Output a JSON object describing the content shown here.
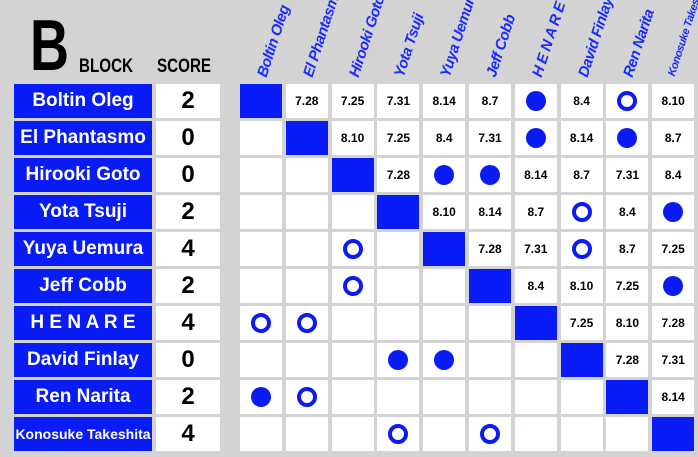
{
  "header": {
    "letter": "B",
    "block": "BLOCK",
    "score": "SCORE"
  },
  "accent": "#0a1cf5",
  "legend_codes": {
    "X": "self",
    "W": "filled-circle",
    "L": "open-circle"
  },
  "wrestlers": [
    {
      "name": "Boltin Oleg",
      "score": "2",
      "results": [
        "X",
        "7.28",
        "7.25",
        "7.31",
        "8.14",
        "8.7",
        "W",
        "8.4",
        "L",
        "8.10"
      ]
    },
    {
      "name": "El Phantasmo",
      "score": "0",
      "results": [
        "",
        "X",
        "8.10",
        "7.25",
        "8.4",
        "7.31",
        "W",
        "8.14",
        "W",
        "8.7"
      ]
    },
    {
      "name": "Hirooki Goto",
      "score": "0",
      "results": [
        "",
        "",
        "X",
        "7.28",
        "W",
        "W",
        "8.14",
        "8.7",
        "7.31",
        "8.4"
      ]
    },
    {
      "name": "Yota Tsuji",
      "score": "2",
      "results": [
        "",
        "",
        "",
        "X",
        "8.10",
        "8.14",
        "8.7",
        "L",
        "8.4",
        "W"
      ]
    },
    {
      "name": "Yuya Uemura",
      "score": "4",
      "results": [
        "",
        "",
        "L",
        "",
        "X",
        "7.28",
        "7.31",
        "L",
        "8.7",
        "7.25"
      ]
    },
    {
      "name": "Jeff Cobb",
      "score": "2",
      "results": [
        "",
        "",
        "L",
        "",
        "",
        "X",
        "8.4",
        "8.10",
        "7.25",
        "W"
      ]
    },
    {
      "name": "H E N A R E",
      "score": "4",
      "results": [
        "L",
        "L",
        "",
        "",
        "",
        "",
        "X",
        "7.25",
        "8.10",
        "7.28"
      ]
    },
    {
      "name": "David Finlay",
      "score": "0",
      "results": [
        "",
        "",
        "",
        "W",
        "W",
        "",
        "",
        "X",
        "7.28",
        "7.31"
      ]
    },
    {
      "name": "Ren Narita",
      "score": "2",
      "results": [
        "W",
        "L",
        "",
        "",
        "",
        "",
        "",
        "",
        "X",
        "8.14"
      ]
    },
    {
      "name": "Konosuke Takeshita",
      "score": "4",
      "results": [
        "",
        "",
        "",
        "L",
        "",
        "L",
        "",
        "",
        "",
        "X"
      ]
    }
  ]
}
